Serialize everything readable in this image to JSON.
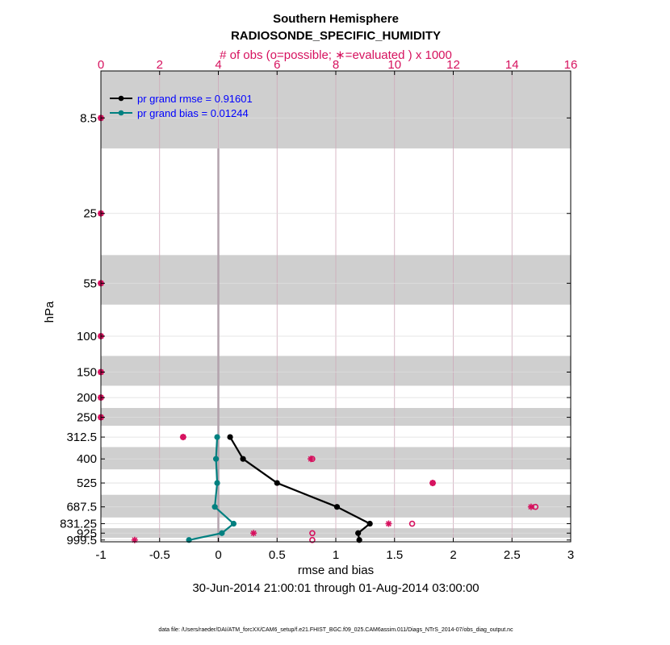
{
  "chart_data": {
    "type": "line",
    "title": "Southern Hemisphere",
    "subtitle": "RADIOSONDE_SPECIFIC_HUMIDITY",
    "top_axis_label": "# of obs (o=possible; ∗=evaluated ) x 1000",
    "xlabel": "rmse and bias",
    "ylabel": "hPa",
    "date_range": "30-Jun-2014 21:00:01 through 01-Aug-2014 03:00:00",
    "footnote": "data file: /Users/raeder/DAI/ATM_forcXX/CAM6_setup/f.e21.FHIST_BGC.f09_025.CAM6assim.011/Diags_NTrS_2014-07/obs_diag_output.nc",
    "xlim": [
      -1,
      3
    ],
    "xticks": [
      "-1",
      "-0.5",
      "0",
      "0.5",
      "1",
      "1.5",
      "2",
      "2.5",
      "3"
    ],
    "top_xlim": [
      0,
      16
    ],
    "top_xticks": [
      "0",
      "2",
      "4",
      "6",
      "8",
      "10",
      "12",
      "14",
      "16"
    ],
    "ylim_hpa": [
      1020,
      5
    ],
    "levels": [
      8.5,
      25,
      55,
      100,
      150,
      200,
      250,
      312.5,
      400,
      525,
      687.5,
      831.25,
      925,
      999.5
    ],
    "level_labels": [
      "8.5",
      "25",
      "55",
      "100",
      "150",
      "200",
      "250",
      "312.5",
      "400",
      "525",
      "687.5",
      "831.25",
      "925",
      "999.5"
    ],
    "shaded_bands_hpa": [
      [
        5,
        12
      ],
      [
        40,
        70
      ],
      [
        125,
        175
      ],
      [
        225,
        275
      ],
      [
        350,
        450
      ],
      [
        600,
        775
      ],
      [
        875,
        975
      ]
    ],
    "series": [
      {
        "name": "pr grand rmse",
        "legend": "pr grand rmse = 0.91601",
        "color": "#000000",
        "levels": [
          312.5,
          400,
          525,
          687.5,
          831.25,
          925,
          999.5
        ],
        "values": [
          0.1,
          0.21,
          0.5,
          1.01,
          1.29,
          1.19,
          1.2
        ]
      },
      {
        "name": "pr grand bias",
        "legend": "pr grand bias = 0.01244",
        "color": "#008080",
        "levels": [
          312.5,
          400,
          525,
          687.5,
          831.25,
          925,
          999.5
        ],
        "values": [
          -0.01,
          -0.02,
          -0.01,
          -0.03,
          0.13,
          0.03,
          -0.25
        ]
      }
    ],
    "obs_count_color": "#d6115e",
    "obs_possible_x1000": [
      {
        "hpa": 8.5,
        "value": 0
      },
      {
        "hpa": 25,
        "value": 0
      },
      {
        "hpa": 55,
        "value": 0
      },
      {
        "hpa": 100,
        "value": 0
      },
      {
        "hpa": 150,
        "value": 0
      },
      {
        "hpa": 200,
        "value": 0
      },
      {
        "hpa": 250,
        "value": 0
      },
      {
        "hpa": 312.5,
        "value": 2.8
      },
      {
        "hpa": 400,
        "value": 7.2
      },
      {
        "hpa": 525,
        "value": 11.3
      },
      {
        "hpa": 687.5,
        "value": 14.8
      },
      {
        "hpa": 831.25,
        "value": 10.6
      },
      {
        "hpa": 925,
        "value": 7.2
      },
      {
        "hpa": 999.5,
        "value": 7.2
      }
    ],
    "obs_evaluated_x1000": [
      {
        "hpa": 8.5,
        "value": 0
      },
      {
        "hpa": 25,
        "value": 0
      },
      {
        "hpa": 55,
        "value": 0
      },
      {
        "hpa": 100,
        "value": 0
      },
      {
        "hpa": 150,
        "value": 0
      },
      {
        "hpa": 200,
        "value": 0
      },
      {
        "hpa": 250,
        "value": 0
      },
      {
        "hpa": 312.5,
        "value": 2.8
      },
      {
        "hpa": 400,
        "value": 7.15
      },
      {
        "hpa": 525,
        "value": 11.3
      },
      {
        "hpa": 687.5,
        "value": 14.65
      },
      {
        "hpa": 831.25,
        "value": 9.8
      },
      {
        "hpa": 925,
        "value": 5.2
      },
      {
        "hpa": 999.5,
        "value": 1.15
      }
    ],
    "grid": true,
    "legend_position": "top-left"
  }
}
